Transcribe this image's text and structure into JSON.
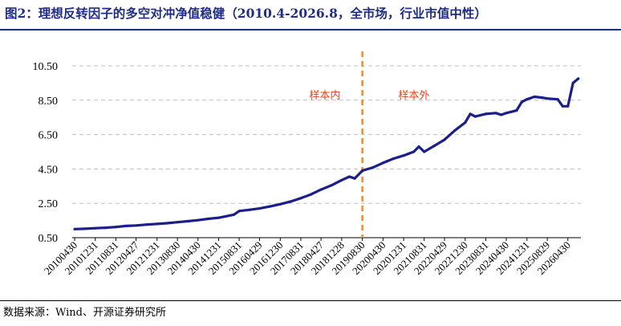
{
  "title": "图2：理想反转因子的多空对冲净值稳健（2010.4-2026.8，全市场，行业市值中性）",
  "source": "数据来源：Wind、开源证券研究所",
  "colors": {
    "line": "#1b1f8a",
    "divider": "#f08b2c",
    "annotation": "#e8401c",
    "grid": "#bfbfbf",
    "title": "#1f2d86"
  },
  "chart_data": {
    "type": "line",
    "title": "",
    "xlabel": "",
    "ylabel": "",
    "ylim": [
      0.5,
      10.5
    ],
    "yticks": [
      "0.50",
      "2.50",
      "4.50",
      "6.50",
      "8.50",
      "10.50"
    ],
    "grid": "horizontal dashed",
    "x_tick_labels": [
      "20100430",
      "20101231",
      "20110831",
      "20120427",
      "20121231",
      "20130830",
      "20140430",
      "20141231",
      "20150831",
      "20160429",
      "20161230",
      "20170831",
      "20180427",
      "20181228",
      "20190830",
      "20200430",
      "20201231",
      "20210831",
      "20220429",
      "20221230",
      "20230831",
      "20240430",
      "20241231",
      "20250829",
      "20260430"
    ],
    "divider": {
      "date": "2019-08-30",
      "style": "dashed"
    },
    "annotations": {
      "in_sample": "样本内",
      "out_of_sample": "样本外"
    },
    "series": [
      {
        "values": [
          [
            "2010-04-30",
            1.0
          ],
          [
            "2010-08-31",
            1.02
          ],
          [
            "2010-12-31",
            1.05
          ],
          [
            "2011-04-29",
            1.08
          ],
          [
            "2011-08-31",
            1.12
          ],
          [
            "2011-12-30",
            1.18
          ],
          [
            "2012-04-27",
            1.21
          ],
          [
            "2012-08-31",
            1.26
          ],
          [
            "2012-12-31",
            1.3
          ],
          [
            "2013-04-26",
            1.34
          ],
          [
            "2013-08-30",
            1.4
          ],
          [
            "2013-12-31",
            1.46
          ],
          [
            "2014-04-30",
            1.52
          ],
          [
            "2014-08-29",
            1.6
          ],
          [
            "2014-12-31",
            1.66
          ],
          [
            "2015-03-31",
            1.75
          ],
          [
            "2015-06-30",
            1.84
          ],
          [
            "2015-08-31",
            2.05
          ],
          [
            "2015-12-31",
            2.12
          ],
          [
            "2016-04-29",
            2.2
          ],
          [
            "2016-08-31",
            2.32
          ],
          [
            "2016-12-30",
            2.45
          ],
          [
            "2017-04-28",
            2.6
          ],
          [
            "2017-08-31",
            2.8
          ],
          [
            "2017-12-29",
            3.02
          ],
          [
            "2018-04-27",
            3.3
          ],
          [
            "2018-08-31",
            3.55
          ],
          [
            "2018-12-28",
            3.85
          ],
          [
            "2019-03-29",
            4.05
          ],
          [
            "2019-05-31",
            3.95
          ],
          [
            "2019-08-30",
            4.4
          ],
          [
            "2019-12-31",
            4.58
          ],
          [
            "2020-04-30",
            4.85
          ],
          [
            "2020-08-31",
            5.1
          ],
          [
            "2020-12-31",
            5.28
          ],
          [
            "2021-04-30",
            5.5
          ],
          [
            "2021-06-30",
            5.8
          ],
          [
            "2021-08-31",
            5.5
          ],
          [
            "2021-12-31",
            5.85
          ],
          [
            "2022-04-29",
            6.2
          ],
          [
            "2022-08-31",
            6.75
          ],
          [
            "2022-12-30",
            7.2
          ],
          [
            "2023-02-28",
            7.7
          ],
          [
            "2023-04-28",
            7.55
          ],
          [
            "2023-08-31",
            7.7
          ],
          [
            "2023-12-29",
            7.75
          ],
          [
            "2024-02-29",
            7.65
          ],
          [
            "2024-04-30",
            7.75
          ],
          [
            "2024-08-30",
            7.9
          ],
          [
            "2024-10-31",
            8.4
          ],
          [
            "2024-12-31",
            8.55
          ],
          [
            "2025-03-31",
            8.7
          ],
          [
            "2025-06-30",
            8.65
          ],
          [
            "2025-08-29",
            8.6
          ],
          [
            "2025-12-31",
            8.55
          ],
          [
            "2026-02-27",
            8.15
          ],
          [
            "2026-04-30",
            8.15
          ],
          [
            "2026-06-30",
            9.5
          ],
          [
            "2026-08-31",
            9.75
          ]
        ]
      }
    ]
  }
}
